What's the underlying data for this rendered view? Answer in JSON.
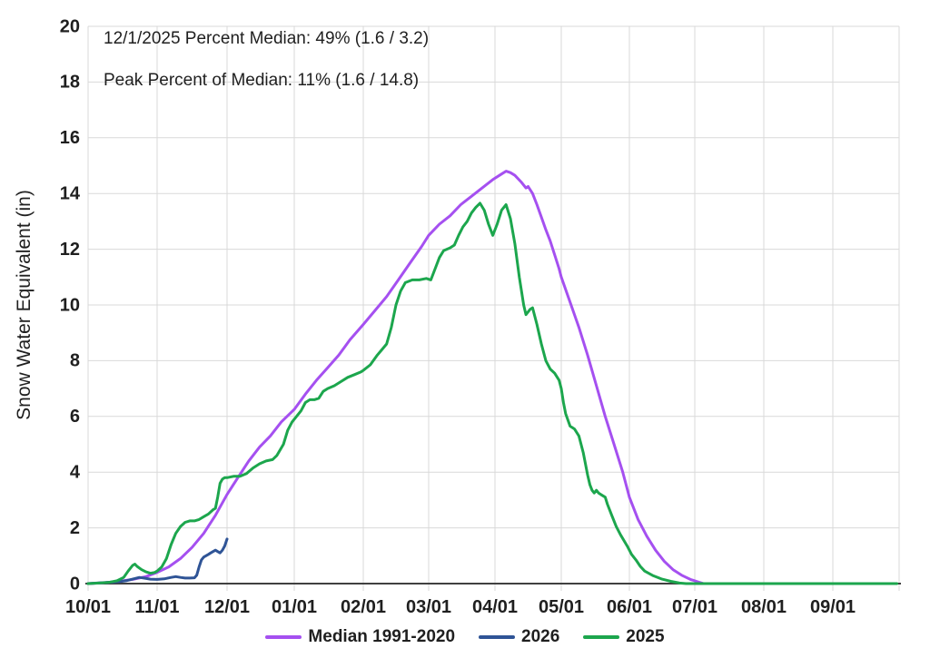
{
  "annotation": {
    "line1": "12/1/2025 Percent Median: 49% (1.6 / 3.2)",
    "line2": "Peak Percent of Median: 11% (1.6 / 14.8)"
  },
  "colors": {
    "median": "#A550F0",
    "y2026": "#2F5496",
    "y2025": "#1CA64D",
    "gridline": "#D9D9D9",
    "axis_line": "#404040",
    "text": "#1F1F1F"
  },
  "chart_data": {
    "type": "line",
    "title": "",
    "xlabel": "",
    "ylabel": "Snow Water Equivalent (in)",
    "ylim": [
      0,
      20
    ],
    "ytick_step": 2,
    "y_tick_labels": [
      "0",
      "2",
      "4",
      "6",
      "8",
      "10",
      "12",
      "14",
      "16",
      "18",
      "20"
    ],
    "x_tick_labels": [
      "10/01",
      "11/01",
      "12/01",
      "01/01",
      "02/01",
      "03/01",
      "04/01",
      "05/01",
      "06/01",
      "07/01",
      "08/01",
      "09/01"
    ],
    "x_unit": "day offset from Oct 1 (water year)",
    "grid": true,
    "legend_position": "bottom",
    "annotations": [
      "12/1/2025 Percent Median: 49% (1.6 / 3.2)",
      "Peak Percent of Median: 11% (1.6 / 14.8)"
    ],
    "series": [
      {
        "name": "Median 1991-2020",
        "color_key": "median",
        "points": [
          [
            0,
            0
          ],
          [
            7,
            0.03
          ],
          [
            14,
            0.08
          ],
          [
            20,
            0.15
          ],
          [
            26,
            0.25
          ],
          [
            31,
            0.4
          ],
          [
            36,
            0.6
          ],
          [
            41,
            0.9
          ],
          [
            46,
            1.3
          ],
          [
            51,
            1.8
          ],
          [
            56,
            2.45
          ],
          [
            61,
            3.2
          ],
          [
            66,
            3.8
          ],
          [
            71,
            4.4
          ],
          [
            76,
            4.9
          ],
          [
            81,
            5.3
          ],
          [
            86,
            5.8
          ],
          [
            92,
            6.25
          ],
          [
            97,
            6.8
          ],
          [
            102,
            7.3
          ],
          [
            107,
            7.75
          ],
          [
            112,
            8.2
          ],
          [
            117,
            8.75
          ],
          [
            123,
            9.3
          ],
          [
            128,
            9.8
          ],
          [
            133,
            10.3
          ],
          [
            138,
            10.9
          ],
          [
            143,
            11.5
          ],
          [
            148,
            12.1
          ],
          [
            151,
            12.5
          ],
          [
            156,
            12.9
          ],
          [
            161,
            13.2
          ],
          [
            166,
            13.6
          ],
          [
            171,
            13.9
          ],
          [
            176,
            14.2
          ],
          [
            181,
            14.5
          ],
          [
            185,
            14.7
          ],
          [
            187,
            14.8
          ],
          [
            189,
            14.75
          ],
          [
            191,
            14.65
          ],
          [
            194,
            14.4
          ],
          [
            196,
            14.2
          ],
          [
            197,
            14.25
          ],
          [
            199,
            14.0
          ],
          [
            201,
            13.6
          ],
          [
            203,
            13.15
          ],
          [
            205,
            12.7
          ],
          [
            207,
            12.3
          ],
          [
            209,
            11.8
          ],
          [
            211,
            11.3
          ],
          [
            212,
            11.0
          ],
          [
            216,
            10.1
          ],
          [
            220,
            9.2
          ],
          [
            224,
            8.2
          ],
          [
            228,
            7.1
          ],
          [
            232,
            6.0
          ],
          [
            236,
            5.0
          ],
          [
            240,
            4.0
          ],
          [
            243,
            3.1
          ],
          [
            247,
            2.3
          ],
          [
            251,
            1.7
          ],
          [
            255,
            1.2
          ],
          [
            259,
            0.8
          ],
          [
            263,
            0.5
          ],
          [
            267,
            0.3
          ],
          [
            271,
            0.15
          ],
          [
            275,
            0.05
          ],
          [
            277,
            0.0
          ]
        ]
      },
      {
        "name": "2026",
        "color_key": "y2026",
        "points": [
          [
            0,
            0
          ],
          [
            8,
            0.04
          ],
          [
            14,
            0.07
          ],
          [
            17,
            0.1
          ],
          [
            20,
            0.16
          ],
          [
            23,
            0.22
          ],
          [
            25,
            0.2
          ],
          [
            28,
            0.16
          ],
          [
            31,
            0.15
          ],
          [
            34,
            0.17
          ],
          [
            37,
            0.22
          ],
          [
            39,
            0.25
          ],
          [
            41,
            0.22
          ],
          [
            43,
            0.2
          ],
          [
            45,
            0.2
          ],
          [
            47,
            0.21
          ],
          [
            48,
            0.3
          ],
          [
            49,
            0.6
          ],
          [
            50,
            0.85
          ],
          [
            51,
            0.95
          ],
          [
            52,
            1.0
          ],
          [
            53,
            1.05
          ],
          [
            54,
            1.1
          ],
          [
            55,
            1.15
          ],
          [
            56,
            1.2
          ],
          [
            57,
            1.15
          ],
          [
            58,
            1.1
          ],
          [
            59,
            1.2
          ],
          [
            60,
            1.35
          ],
          [
            61,
            1.6
          ]
        ]
      },
      {
        "name": "2025",
        "color_key": "y2025",
        "points": [
          [
            0,
            0
          ],
          [
            5,
            0.02
          ],
          [
            9,
            0.04
          ],
          [
            13,
            0.1
          ],
          [
            16,
            0.22
          ],
          [
            18,
            0.45
          ],
          [
            20,
            0.65
          ],
          [
            21,
            0.7
          ],
          [
            22,
            0.62
          ],
          [
            24,
            0.5
          ],
          [
            26,
            0.42
          ],
          [
            28,
            0.37
          ],
          [
            30,
            0.4
          ],
          [
            31,
            0.45
          ],
          [
            33,
            0.6
          ],
          [
            35,
            0.9
          ],
          [
            37,
            1.4
          ],
          [
            39,
            1.8
          ],
          [
            41,
            2.05
          ],
          [
            43,
            2.2
          ],
          [
            45,
            2.25
          ],
          [
            47,
            2.25
          ],
          [
            49,
            2.3
          ],
          [
            51,
            2.4
          ],
          [
            53,
            2.5
          ],
          [
            55,
            2.65
          ],
          [
            56,
            2.7
          ],
          [
            57,
            3.1
          ],
          [
            58,
            3.6
          ],
          [
            59,
            3.75
          ],
          [
            60,
            3.8
          ],
          [
            61,
            3.8
          ],
          [
            64,
            3.85
          ],
          [
            67,
            3.85
          ],
          [
            70,
            3.95
          ],
          [
            73,
            4.15
          ],
          [
            76,
            4.3
          ],
          [
            79,
            4.4
          ],
          [
            82,
            4.45
          ],
          [
            84,
            4.6
          ],
          [
            87,
            5.0
          ],
          [
            89,
            5.5
          ],
          [
            91,
            5.8
          ],
          [
            93,
            6.0
          ],
          [
            95,
            6.2
          ],
          [
            97,
            6.5
          ],
          [
            99,
            6.6
          ],
          [
            101,
            6.6
          ],
          [
            103,
            6.65
          ],
          [
            105,
            6.9
          ],
          [
            107,
            7.0
          ],
          [
            110,
            7.1
          ],
          [
            113,
            7.25
          ],
          [
            116,
            7.4
          ],
          [
            119,
            7.5
          ],
          [
            122,
            7.6
          ],
          [
            123,
            7.65
          ],
          [
            126,
            7.85
          ],
          [
            129,
            8.2
          ],
          [
            131,
            8.4
          ],
          [
            133,
            8.6
          ],
          [
            135,
            9.2
          ],
          [
            137,
            10.0
          ],
          [
            139,
            10.5
          ],
          [
            141,
            10.8
          ],
          [
            144,
            10.9
          ],
          [
            147,
            10.9
          ],
          [
            150,
            10.95
          ],
          [
            152,
            10.9
          ],
          [
            154,
            11.3
          ],
          [
            156,
            11.7
          ],
          [
            158,
            11.95
          ],
          [
            161,
            12.05
          ],
          [
            163,
            12.15
          ],
          [
            165,
            12.5
          ],
          [
            167,
            12.8
          ],
          [
            169,
            13.0
          ],
          [
            171,
            13.3
          ],
          [
            173,
            13.5
          ],
          [
            175,
            13.65
          ],
          [
            177,
            13.4
          ],
          [
            179,
            12.9
          ],
          [
            181,
            12.5
          ],
          [
            183,
            12.9
          ],
          [
            185,
            13.4
          ],
          [
            187,
            13.6
          ],
          [
            189,
            13.1
          ],
          [
            191,
            12.2
          ],
          [
            193,
            11.0
          ],
          [
            195,
            10.0
          ],
          [
            196,
            9.65
          ],
          [
            198,
            9.85
          ],
          [
            199,
            9.9
          ],
          [
            201,
            9.3
          ],
          [
            203,
            8.6
          ],
          [
            205,
            8.0
          ],
          [
            207,
            7.7
          ],
          [
            209,
            7.55
          ],
          [
            211,
            7.3
          ],
          [
            212,
            7.0
          ],
          [
            213,
            6.5
          ],
          [
            214,
            6.1
          ],
          [
            216,
            5.65
          ],
          [
            218,
            5.55
          ],
          [
            220,
            5.3
          ],
          [
            222,
            4.7
          ],
          [
            224,
            3.9
          ],
          [
            225,
            3.55
          ],
          [
            226,
            3.35
          ],
          [
            227,
            3.25
          ],
          [
            228,
            3.35
          ],
          [
            229,
            3.25
          ],
          [
            230,
            3.2
          ],
          [
            232,
            3.1
          ],
          [
            233,
            2.85
          ],
          [
            235,
            2.45
          ],
          [
            237,
            2.05
          ],
          [
            239,
            1.75
          ],
          [
            242,
            1.35
          ],
          [
            244,
            1.05
          ],
          [
            246,
            0.85
          ],
          [
            248,
            0.62
          ],
          [
            250,
            0.45
          ],
          [
            254,
            0.28
          ],
          [
            258,
            0.16
          ],
          [
            262,
            0.08
          ],
          [
            266,
            0.02
          ],
          [
            269,
            0
          ],
          [
            285,
            0
          ],
          [
            305,
            0
          ],
          [
            325,
            0
          ],
          [
            345,
            0
          ],
          [
            364,
            0
          ]
        ]
      }
    ]
  }
}
